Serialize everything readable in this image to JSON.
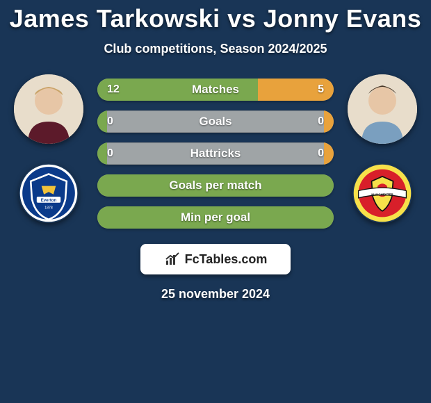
{
  "background_color": "#193556",
  "title": "James Tarkowski vs Jonny Evans",
  "subtitle": "Club competitions, Season 2024/2025",
  "players": {
    "left": {
      "name": "James Tarkowski",
      "club_name": "Everton",
      "club_primary": "#0a3a8a",
      "club_accent": "#f0c23a"
    },
    "right": {
      "name": "Jonny Evans",
      "club_name": "Manchester United",
      "club_primary": "#d81f2a",
      "club_accent": "#f7e14a"
    }
  },
  "bars": {
    "left_fill_color": "#7aa84f",
    "right_fill_color": "#e8a23c",
    "empty_color": "#9fa4a6",
    "text_color": "#ffffff",
    "font_size": 17,
    "rows": [
      {
        "label": "Matches",
        "left_value": "12",
        "right_value": "5",
        "left_pct": 68,
        "right_pct": 32
      },
      {
        "label": "Goals",
        "left_value": "0",
        "right_value": "0",
        "left_pct": 4,
        "right_pct": 4
      },
      {
        "label": "Hattricks",
        "left_value": "0",
        "right_value": "0",
        "left_pct": 4,
        "right_pct": 4
      },
      {
        "label": "Goals per match",
        "left_value": "",
        "right_value": "",
        "left_pct": 100,
        "right_pct": 0
      },
      {
        "label": "Min per goal",
        "left_value": "",
        "right_value": "",
        "left_pct": 100,
        "right_pct": 0
      }
    ]
  },
  "attribution": {
    "text": "FcTables.com"
  },
  "date": "25 november 2024"
}
